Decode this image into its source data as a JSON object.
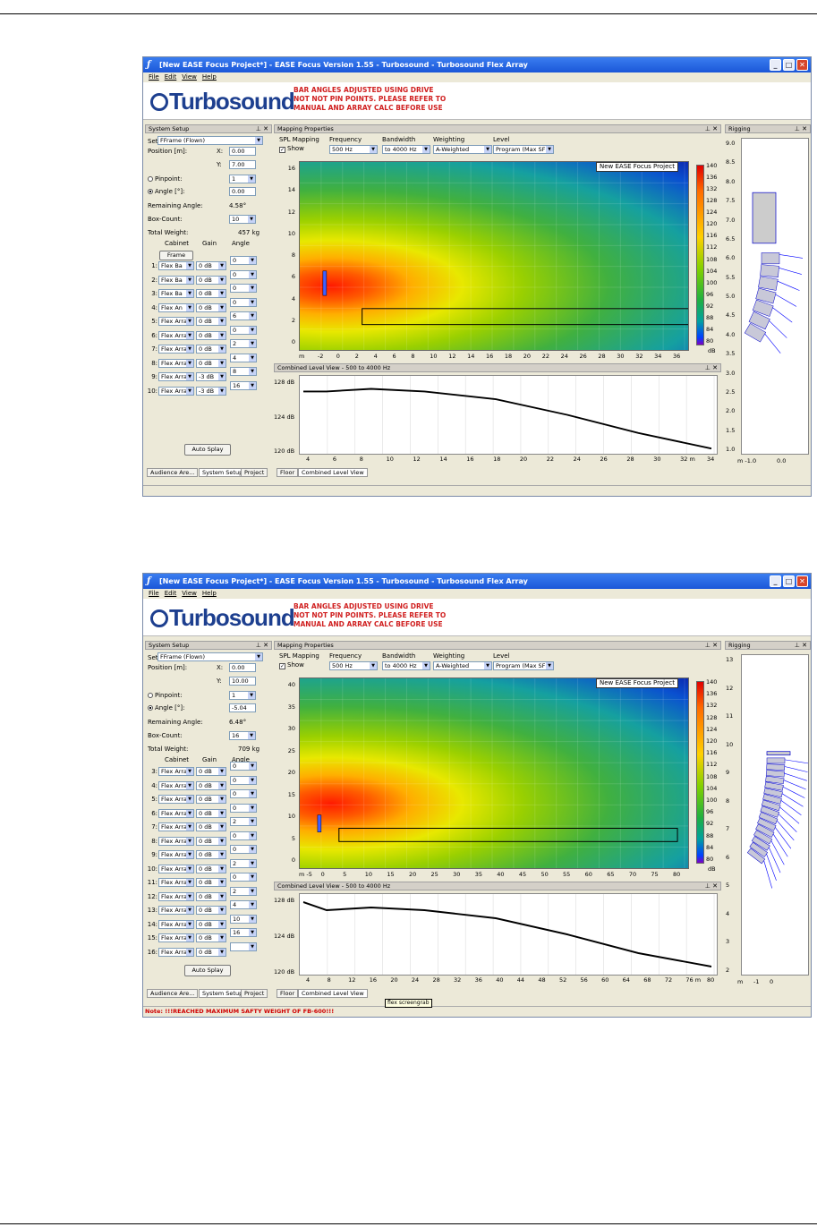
{
  "screens": [
    {
      "title": "[New EASE Focus Project*] - EASE Focus Version 1.55 - Turbosound - Turbosound Flex Array",
      "menu": [
        "File",
        "Edit",
        "View",
        "Help"
      ],
      "brand": "Turbosound",
      "banner_note": [
        "BAR ANGLES ADJUSTED USING DRIVE",
        "NOT NOT PIN POINTS. PLEASE REFER TO",
        "MANUAL AND ARRAY CALC BEFORE USE"
      ],
      "panels": {
        "system": "System Setup",
        "mapping": "Mapping Properties",
        "rigging": "Rigging",
        "combined": "Combined Level View - 500 to 4000 Hz"
      },
      "setup": {
        "setup_label": "Setup:",
        "setup_value": "FFrame (Flown)",
        "position_label": "Position [m]:",
        "x_label": "X:",
        "x_value": "0.00",
        "y_label": "Y:",
        "y_value": "7.00",
        "pinpoint_label": "Pinpoint:",
        "pinpoint_value": "1",
        "angle_label": "Angle [°]:",
        "angle_value": "0.00",
        "remaining_label": "Remaining Angle:",
        "remaining_value": "4.58°",
        "boxcount_label": "Box-Count:",
        "boxcount_value": "10",
        "weight_label": "Total Weight:",
        "weight_value": "457 kg",
        "col_cabinet": "Cabinet",
        "col_gain": "Gain",
        "col_angle": "Angle"
      },
      "frame_label": "Frame",
      "cabinets": [
        {
          "n": "1:",
          "cab": "Flex Ba",
          "gain": "0 dB",
          "angle": "0"
        },
        {
          "n": "2:",
          "cab": "Flex Ba",
          "gain": "0 dB",
          "angle": "0"
        },
        {
          "n": "3:",
          "cab": "Flex Ba",
          "gain": "0 dB",
          "angle": "0"
        },
        {
          "n": "4:",
          "cab": "Flex An",
          "gain": "0 dB",
          "angle": "0"
        },
        {
          "n": "5:",
          "cab": "Flex Array",
          "gain": "0 dB",
          "angle": "6"
        },
        {
          "n": "6:",
          "cab": "Flex Array",
          "gain": "0 dB",
          "angle": "0"
        },
        {
          "n": "7:",
          "cab": "Flex Array",
          "gain": "0 dB",
          "angle": "2"
        },
        {
          "n": "8:",
          "cab": "Flex Array",
          "gain": "0 dB",
          "angle": "4"
        },
        {
          "n": "9:",
          "cab": "Flex Array",
          "gain": "-3 dB",
          "angle": "8"
        },
        {
          "n": "10:",
          "cab": "Flex Array",
          "gain": "-3 dB",
          "angle": "16"
        }
      ],
      "auto_splay": "Auto Splay",
      "left_tabs": [
        "Audience Are...",
        "System Setup",
        "Project"
      ],
      "mid_tabs": [
        "Floor",
        "Combined Level View"
      ],
      "mapping": {
        "spl_label": "SPL Mapping",
        "show_label": "Show",
        "freq_label": "Frequency",
        "freq_value": "500 Hz",
        "bw_label": "Bandwidth",
        "bw_value": "to 4000 Hz",
        "weight_label": "Weighting",
        "weight_value": "A-Weighted",
        "level_label": "Level",
        "level_value": "Program (Max SF"
      },
      "project_name": "New EASE Focus Project",
      "y_ticks": [
        "16",
        "14",
        "12",
        "10",
        "8",
        "6",
        "4",
        "2",
        "0"
      ],
      "x_ticks": [
        "m",
        "-2",
        "0",
        "2",
        "4",
        "6",
        "8",
        "10",
        "12",
        "14",
        "16",
        "18",
        "20",
        "22",
        "24",
        "26",
        "28",
        "30",
        "32",
        "34",
        "36"
      ],
      "cb_ticks": [
        "140",
        "136",
        "132",
        "128",
        "124",
        "120",
        "116",
        "112",
        "108",
        "104",
        "100",
        "96",
        "92",
        "88",
        "84",
        "80"
      ],
      "cb_unit": "dB",
      "lv_yticks": [
        "128 dB",
        "124 dB",
        "120 dB"
      ],
      "lv_xticks": [
        "4",
        "6",
        "8",
        "10",
        "12",
        "14",
        "16",
        "18",
        "20",
        "22",
        "24",
        "26",
        "28",
        "30",
        "32 m",
        "34"
      ],
      "rig_yticks": [
        "9.0",
        "8.5",
        "8.0",
        "7.5",
        "7.0",
        "6.5",
        "6.0",
        "5.5",
        "5.0",
        "4.5",
        "4.0",
        "3.5",
        "3.0",
        "2.5",
        "2.0",
        "1.5",
        "1.0"
      ],
      "rig_xticks": [
        "m -1.0",
        "0.0"
      ],
      "status_warning": "",
      "tooltip": ""
    },
    {
      "title": "[New EASE Focus Project*] - EASE Focus Version 1.55 - Turbosound - Turbosound Flex Array",
      "menu": [
        "File",
        "Edit",
        "View",
        "Help"
      ],
      "brand": "Turbosound",
      "banner_note": [
        "BAR ANGLES ADJUSTED USING DRIVE",
        "NOT NOT PIN POINTS. PLEASE REFER TO",
        "MANUAL AND ARRAY CALC BEFORE USE"
      ],
      "panels": {
        "system": "System Setup",
        "mapping": "Mapping Properties",
        "rigging": "Rigging",
        "combined": "Combined Level View - 500 to 4000 Hz"
      },
      "setup": {
        "setup_label": "Setup:",
        "setup_value": "FFrame (Flown)",
        "position_label": "Position [m]:",
        "x_label": "X:",
        "x_value": "0.00",
        "y_label": "Y:",
        "y_value": "10.00",
        "pinpoint_label": "Pinpoint:",
        "pinpoint_value": "1",
        "angle_label": "Angle [°]:",
        "angle_value": "-5.04",
        "remaining_label": "Remaining Angle:",
        "remaining_value": "6.48°",
        "boxcount_label": "Box-Count:",
        "boxcount_value": "16",
        "weight_label": "Total Weight:",
        "weight_value": "709 kg",
        "col_cabinet": "Cabinet",
        "col_gain": "Gain",
        "col_angle": "Angle"
      },
      "frame_label": "",
      "cabinets": [
        {
          "n": "3:",
          "cab": "Flex Array",
          "gain": "0 dB",
          "angle": "0"
        },
        {
          "n": "4:",
          "cab": "Flex Array",
          "gain": "0 dB",
          "angle": "0"
        },
        {
          "n": "5:",
          "cab": "Flex Array",
          "gain": "0 dB",
          "angle": "0"
        },
        {
          "n": "6:",
          "cab": "Flex Array",
          "gain": "0 dB",
          "angle": "0"
        },
        {
          "n": "7:",
          "cab": "Flex Array",
          "gain": "0 dB",
          "angle": "2"
        },
        {
          "n": "8:",
          "cab": "Flex Array",
          "gain": "0 dB",
          "angle": "0"
        },
        {
          "n": "9:",
          "cab": "Flex Array",
          "gain": "0 dB",
          "angle": "0"
        },
        {
          "n": "10:",
          "cab": "Flex Array",
          "gain": "0 dB",
          "angle": "2"
        },
        {
          "n": "11:",
          "cab": "Flex Array",
          "gain": "0 dB",
          "angle": "0"
        },
        {
          "n": "12:",
          "cab": "Flex Array",
          "gain": "0 dB",
          "angle": "2"
        },
        {
          "n": "13:",
          "cab": "Flex Array",
          "gain": "0 dB",
          "angle": "4"
        },
        {
          "n": "14:",
          "cab": "Flex Array",
          "gain": "0 dB",
          "angle": "10"
        },
        {
          "n": "15:",
          "cab": "Flex Array",
          "gain": "0 dB",
          "angle": "16"
        },
        {
          "n": "16:",
          "cab": "Flex Array",
          "gain": "0 dB",
          "angle": ""
        }
      ],
      "auto_splay": "Auto Splay",
      "left_tabs": [
        "Audience Are...",
        "System Setup",
        "Project"
      ],
      "mid_tabs": [
        "Floor",
        "Combined Level View"
      ],
      "mapping": {
        "spl_label": "SPL Mapping",
        "show_label": "Show",
        "freq_label": "Frequency",
        "freq_value": "500 Hz",
        "bw_label": "Bandwidth",
        "bw_value": "to 4000 Hz",
        "weight_label": "Weighting",
        "weight_value": "A-Weighted",
        "level_label": "Level",
        "level_value": "Program (Max SF"
      },
      "project_name": "New EASE Focus Project",
      "y_ticks": [
        "40",
        "35",
        "30",
        "25",
        "20",
        "15",
        "10",
        "5",
        "0"
      ],
      "x_ticks": [
        "m -5",
        "0",
        "5",
        "10",
        "15",
        "20",
        "25",
        "30",
        "35",
        "40",
        "45",
        "50",
        "55",
        "60",
        "65",
        "70",
        "75",
        "80"
      ],
      "cb_ticks": [
        "140",
        "136",
        "132",
        "128",
        "124",
        "120",
        "116",
        "112",
        "108",
        "104",
        "100",
        "96",
        "92",
        "88",
        "84",
        "80"
      ],
      "cb_unit": "dB",
      "lv_yticks": [
        "128 dB",
        "124 dB",
        "120 dB"
      ],
      "lv_xticks": [
        "4",
        "8",
        "12",
        "16",
        "20",
        "24",
        "28",
        "32",
        "36",
        "40",
        "44",
        "48",
        "52",
        "56",
        "60",
        "64",
        "68",
        "72",
        "76 m",
        "80"
      ],
      "rig_yticks": [
        "13",
        "12",
        "11",
        "10",
        "9",
        "8",
        "7",
        "6",
        "5",
        "4",
        "3",
        "2"
      ],
      "rig_xticks": [
        "m",
        "-1",
        "0"
      ],
      "status_warning": "Note: !!!REACHED MAXIMUM SAFTY WEIGHT OF FB-600!!!",
      "tooltip": "flex screengrab"
    }
  ]
}
